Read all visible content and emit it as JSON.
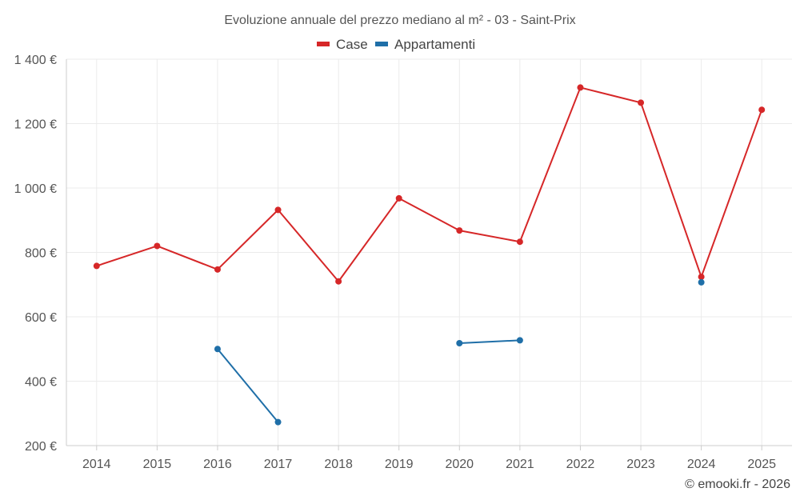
{
  "chart_data": {
    "type": "line",
    "title": "Evoluzione annuale del prezzo mediano al m² - 03 - Saint-Prix",
    "xlabel": "",
    "ylabel": "",
    "categories": [
      "2014",
      "2015",
      "2016",
      "2017",
      "2018",
      "2019",
      "2020",
      "2021",
      "2022",
      "2023",
      "2024",
      "2025"
    ],
    "ylim": [
      200,
      1400
    ],
    "yticks": [
      200,
      400,
      600,
      800,
      1000,
      1200,
      1400
    ],
    "ytick_labels": [
      "200 €",
      "400 €",
      "600 €",
      "800 €",
      "1 000 €",
      "1 200 €",
      "1 400 €"
    ],
    "grid": true,
    "legend_position": "top-center",
    "series": [
      {
        "name": "Case",
        "color": "#d62728",
        "values": [
          758,
          820,
          747,
          932,
          710,
          968,
          868,
          833,
          1312,
          1265,
          724,
          1243
        ]
      },
      {
        "name": "Appartamenti",
        "color": "#1f6fa8",
        "values": [
          null,
          null,
          500,
          273,
          null,
          null,
          518,
          527,
          null,
          null,
          707,
          null
        ]
      }
    ]
  },
  "credit": "© emooki.fr - 2026"
}
